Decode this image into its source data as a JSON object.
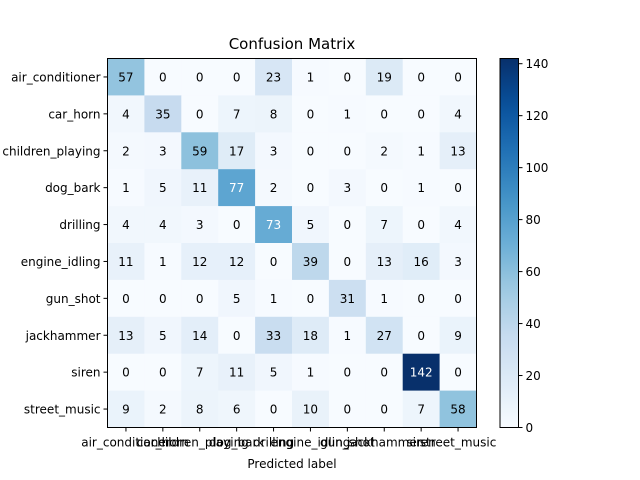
{
  "chart_data": {
    "type": "heatmap",
    "title": "Confusion Matrix",
    "xlabel": "Predicted label",
    "ylabel": "",
    "row_labels": [
      "air_conditioner",
      "car_horn",
      "children_playing",
      "dog_bark",
      "drilling",
      "engine_idling",
      "gun_shot",
      "jackhammer",
      "siren",
      "street_music"
    ],
    "col_labels": [
      "air_conditioner",
      "car_horn",
      "children_playing",
      "dog_bark",
      "drilling",
      "engine_idling",
      "gun_shot",
      "jackhammer",
      "siren",
      "street_music"
    ],
    "matrix": [
      [
        57,
        0,
        0,
        0,
        23,
        1,
        0,
        19,
        0,
        0
      ],
      [
        4,
        35,
        0,
        7,
        8,
        0,
        1,
        0,
        0,
        4
      ],
      [
        2,
        3,
        59,
        17,
        3,
        0,
        0,
        2,
        1,
        13
      ],
      [
        1,
        5,
        11,
        77,
        2,
        0,
        3,
        0,
        1,
        0
      ],
      [
        4,
        4,
        3,
        0,
        73,
        5,
        0,
        7,
        0,
        4
      ],
      [
        11,
        1,
        12,
        12,
        0,
        39,
        0,
        13,
        16,
        3
      ],
      [
        0,
        0,
        0,
        5,
        1,
        0,
        31,
        1,
        0,
        0
      ],
      [
        13,
        5,
        14,
        0,
        33,
        18,
        1,
        27,
        0,
        9
      ],
      [
        0,
        0,
        7,
        11,
        5,
        1,
        0,
        0,
        142,
        0
      ],
      [
        9,
        2,
        8,
        6,
        0,
        10,
        0,
        0,
        7,
        58
      ]
    ],
    "colormap": "Blues",
    "vmin": 0,
    "vmax": 142,
    "colorbar_ticks": [
      0,
      20,
      40,
      60,
      80,
      100,
      120,
      140
    ],
    "grid": false,
    "colors": {
      "low": "#f7fbff",
      "high": "#08306b",
      "text_dark": "#000000",
      "text_light": "#ffffff"
    }
  }
}
